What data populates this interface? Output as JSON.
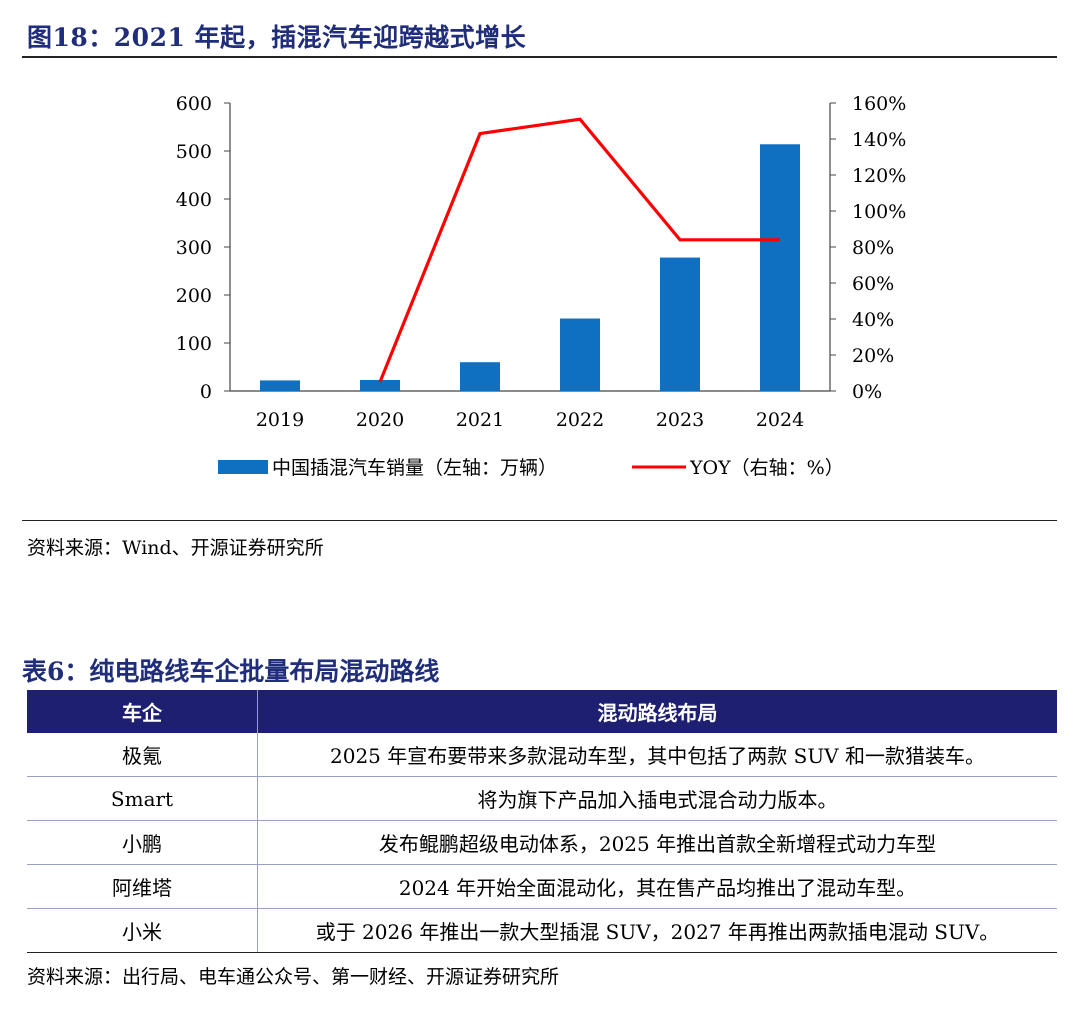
{
  "figure": {
    "title": "图18：2021 年起，插混汽车迎跨越式增长",
    "source": "资料来源：Wind、开源证券研究所"
  },
  "chart_data": {
    "type": "bar+line",
    "categories": [
      "2019",
      "2020",
      "2021",
      "2022",
      "2023",
      "2024"
    ],
    "series": [
      {
        "name": "中国插混汽车销量（左轴：万辆）",
        "type": "bar",
        "axis": "left",
        "values": [
          22,
          23,
          60,
          151,
          278,
          514
        ],
        "color": "#0f6fc0"
      },
      {
        "name": "YOY（右轴：%）",
        "type": "line",
        "axis": "right",
        "values": [
          null,
          5,
          143,
          151,
          84,
          84
        ],
        "color": "#ff0000"
      }
    ],
    "left_axis": {
      "ylim": [
        0,
        600
      ],
      "ticks": [
        "0",
        "100",
        "200",
        "300",
        "400",
        "500",
        "600"
      ]
    },
    "right_axis": {
      "ylim": [
        0,
        160
      ],
      "ticks": [
        "0%",
        "20%",
        "40%",
        "60%",
        "80%",
        "100%",
        "120%",
        "140%",
        "160%"
      ]
    },
    "legend_position": "bottom",
    "grid": false
  },
  "table": {
    "title": "表6：纯电路线车企批量布局混动路线",
    "headers": [
      "车企",
      "混动路线布局"
    ],
    "rows": [
      [
        "极氪",
        "2025 年宣布要带来多款混动车型，其中包括了两款 SUV 和一款猎装车。"
      ],
      [
        "Smart",
        "将为旗下产品加入插电式混合动力版本。"
      ],
      [
        "小鹏",
        "发布鲲鹏超级电动体系，2025 年推出首款全新增程式动力车型"
      ],
      [
        "阿维塔",
        "2024 年开始全面混动化，其在售产品均推出了混动车型。"
      ],
      [
        "小米",
        "或于 2026 年推出一款大型插混 SUV，2027 年再推出两款插电混动 SUV。"
      ]
    ],
    "source": "资料来源：出行局、电车通公众号、第一财经、开源证券研究所"
  }
}
